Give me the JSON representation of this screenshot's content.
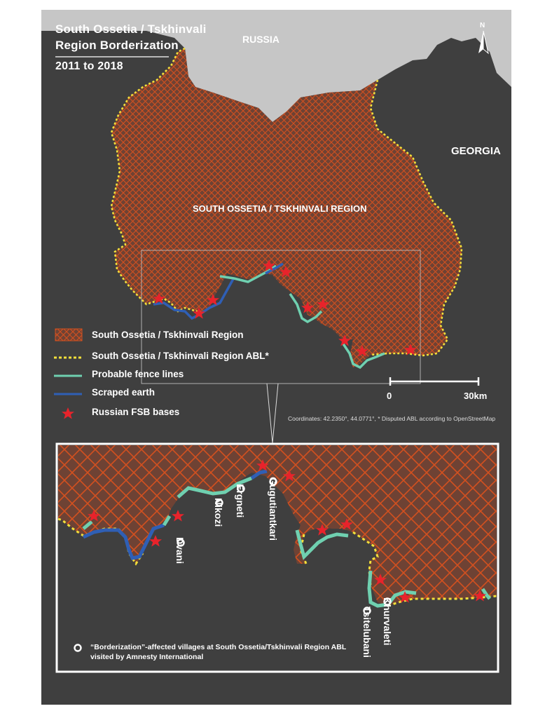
{
  "title": {
    "line1": "South Ossetia / Tskhinvali",
    "line2": "Region Borderization",
    "years": "2011 to 2018"
  },
  "labels": {
    "russia": "RUSSIA",
    "georgia": "GEORGIA",
    "region": "SOUTH OSSETIA / TSKHINVALI REGION",
    "north": "N"
  },
  "legend": {
    "region": "South Ossetia / Tskhinvali Region",
    "abl": "South Ossetia / Tskhinvali Region ABL*",
    "fence": "Probable fence lines",
    "scraped": "Scraped earth",
    "fsb": "Russian FSB bases"
  },
  "scale": {
    "start": "0",
    "end": "30km"
  },
  "note": "Coordinates: 42.2350°,  44.0771°,  * Disputed ABL according to OpenStreetMap",
  "villages": [
    "Dvani",
    "Nikozi",
    "Ergneti",
    "Gugutiantkari",
    "Tsitelubani",
    "Khurvaleti"
  ],
  "inset_legend": "“Borderization”-affected villages at South Ossetia/Tskhinvali Region ABL visited by Amnesty International",
  "colors": {
    "background": "#3f3f3f",
    "russia": "#c6c6c6",
    "region_fill": "#7a4a3c",
    "hatch": "#d3501f",
    "abl": "#f3e03a",
    "fence": "#6fd0b0",
    "scraped": "#2f5fb5",
    "fsb": "#e8232b"
  }
}
